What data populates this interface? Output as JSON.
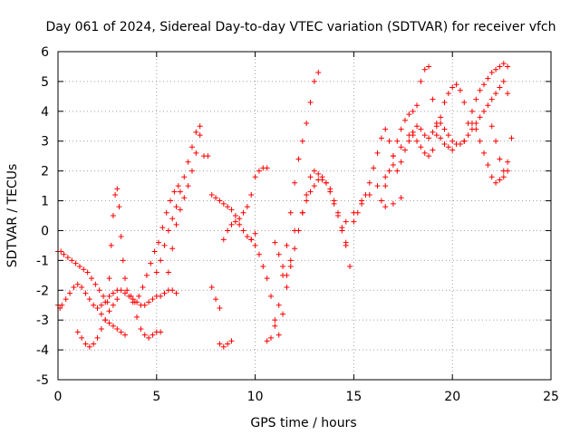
{
  "chart_data": {
    "type": "scatter",
    "title": "Day 061 of 2024, Sidereal Day-to-day VTEC variation (SDTVAR) for receiver vfch",
    "xlabel": "GPS time / hours",
    "ylabel": "SDTVAR / TECUs",
    "xlim": [
      0,
      25
    ],
    "ylim": [
      -5,
      6
    ],
    "xticks": [
      0,
      5,
      10,
      15,
      20,
      25
    ],
    "yticks": [
      -5,
      -4,
      -3,
      -2,
      -1,
      0,
      1,
      2,
      3,
      4,
      5,
      6
    ],
    "grid": true,
    "marker": "+",
    "color": "#ff0000",
    "series": [
      {
        "x": [
          0.0,
          0.15,
          0.3,
          0.5,
          0.7,
          0.9,
          1.1,
          1.3,
          1.5,
          1.7,
          1.9,
          2.1,
          2.3,
          2.5,
          2.6,
          2.7,
          2.8,
          2.9,
          3.0,
          3.1,
          3.2,
          3.3,
          3.4,
          3.5,
          3.7,
          3.9,
          4.1,
          4.3,
          4.5,
          4.7,
          4.9,
          5.1,
          5.3,
          5.5,
          5.7,
          5.9,
          6.1
        ],
        "y": [
          -0.7,
          -0.7,
          -0.8,
          -0.9,
          -1.0,
          -1.1,
          -1.2,
          -1.3,
          -1.4,
          -1.6,
          -1.8,
          -2.0,
          -2.2,
          -2.4,
          -1.6,
          -0.5,
          0.5,
          1.2,
          1.4,
          0.8,
          -0.2,
          -1.0,
          -1.6,
          -2.0,
          -2.2,
          -2.4,
          -2.2,
          -1.9,
          -1.5,
          -1.1,
          -0.7,
          -0.4,
          0.1,
          0.6,
          1.0,
          1.3,
          1.5
        ]
      },
      {
        "x": [
          0.0,
          0.1,
          0.2,
          0.4,
          0.6,
          0.8,
          1.0,
          1.2,
          1.4,
          1.6,
          1.8,
          2.0,
          2.2,
          2.4,
          2.6,
          2.8,
          3.0,
          3.2,
          3.4,
          3.6,
          3.8,
          4.0,
          4.2,
          4.4,
          4.6,
          4.8,
          5.0,
          5.2,
          5.4,
          5.6,
          5.8,
          6.0
        ],
        "y": [
          -2.5,
          -2.6,
          -2.5,
          -2.3,
          -2.1,
          -1.9,
          -1.8,
          -1.9,
          -2.1,
          -2.3,
          -2.5,
          -2.6,
          -2.5,
          -2.4,
          -2.2,
          -2.1,
          -2.0,
          -2.0,
          -2.1,
          -2.2,
          -2.3,
          -2.4,
          -2.5,
          -2.5,
          -2.4,
          -2.3,
          -2.2,
          -2.2,
          -2.1,
          -2.0,
          -2.0,
          -2.1
        ]
      },
      {
        "x": [
          1.0,
          1.2,
          1.4,
          1.6,
          1.8,
          2.0,
          2.2,
          2.4,
          2.6,
          2.8,
          3.0
        ],
        "y": [
          -3.4,
          -3.6,
          -3.8,
          -3.9,
          -3.8,
          -3.6,
          -3.3,
          -3.0,
          -2.7,
          -2.5,
          -2.3
        ]
      },
      {
        "x": [
          3.8,
          4.0,
          4.2,
          4.4,
          4.6,
          4.8,
          5.0,
          5.2
        ],
        "y": [
          -2.4,
          -2.9,
          -3.3,
          -3.5,
          -3.6,
          -3.5,
          -3.4,
          -3.4
        ]
      },
      {
        "x": [
          2.2,
          2.4,
          2.6,
          2.8,
          3.0,
          3.2,
          3.4
        ],
        "y": [
          -2.8,
          -3.0,
          -3.1,
          -3.2,
          -3.3,
          -3.4,
          -3.5
        ]
      },
      {
        "x": [
          5.0,
          5.2,
          5.4,
          5.6,
          5.8,
          6.0,
          6.2,
          6.4,
          6.6,
          6.8,
          7.0,
          7.2
        ],
        "y": [
          -1.4,
          -1.0,
          -0.5,
          0.0,
          0.4,
          0.8,
          1.3,
          1.8,
          2.3,
          2.8,
          3.3,
          3.5
        ]
      },
      {
        "x": [
          5.6,
          5.8,
          6.0,
          6.2,
          6.4,
          6.6,
          6.8,
          7.0,
          7.2
        ],
        "y": [
          -1.4,
          -0.6,
          0.2,
          0.7,
          1.1,
          1.5,
          2.0,
          2.6,
          3.2
        ]
      },
      {
        "x": [
          7.4,
          7.6,
          7.8,
          8.0,
          8.2,
          8.4,
          8.6,
          8.8,
          9.0,
          9.2,
          9.4,
          9.6,
          9.8,
          10.0
        ],
        "y": [
          2.5,
          2.5,
          1.2,
          1.1,
          1.0,
          0.9,
          0.8,
          0.7,
          0.5,
          0.2,
          0.0,
          -0.2,
          -0.3,
          -0.1
        ]
      },
      {
        "x": [
          7.8,
          8.0,
          8.2
        ],
        "y": [
          -1.9,
          -2.3,
          -2.6
        ]
      },
      {
        "x": [
          8.4,
          8.6,
          8.8,
          9.0,
          9.2,
          9.4,
          9.6,
          9.8,
          10.0,
          10.2,
          10.4,
          10.6
        ],
        "y": [
          -0.3,
          0.0,
          0.2,
          0.3,
          0.4,
          0.6,
          0.8,
          1.2,
          1.8,
          2.0,
          2.1,
          2.1
        ]
      },
      {
        "x": [
          8.2,
          8.4,
          8.6,
          8.8
        ],
        "y": [
          -3.8,
          -3.9,
          -3.8,
          -3.7
        ]
      },
      {
        "x": [
          9.8,
          10.0,
          10.2,
          10.4,
          10.6,
          10.8,
          11.0,
          11.2,
          11.4,
          11.6,
          11.8,
          12.0
        ],
        "y": [
          -0.3,
          -0.5,
          -0.8,
          -1.2,
          -1.6,
          -2.2,
          -3.0,
          -3.5,
          -2.8,
          -1.9,
          -1.0,
          0.0
        ]
      },
      {
        "x": [
          10.6,
          10.8,
          11.0,
          11.2,
          11.4,
          11.6,
          11.8,
          12.0,
          12.2,
          12.4,
          12.6,
          12.8,
          13.0,
          13.2
        ],
        "y": [
          -3.7,
          -3.6,
          -3.2,
          -2.5,
          -1.5,
          -0.5,
          0.6,
          1.6,
          2.4,
          3.0,
          3.6,
          4.3,
          5.0,
          5.3
        ]
      },
      {
        "x": [
          11.0,
          11.2,
          11.4,
          11.6,
          11.8,
          12.0,
          12.2,
          12.4,
          12.6,
          12.8,
          13.0,
          13.2,
          13.4,
          13.6,
          13.8,
          14.0,
          14.2,
          14.4,
          14.6,
          14.8
        ],
        "y": [
          -0.4,
          -0.8,
          -1.2,
          -1.5,
          -1.2,
          -0.6,
          0.0,
          0.6,
          1.0,
          1.3,
          1.5,
          1.7,
          1.8,
          1.6,
          1.3,
          0.9,
          0.5,
          0.0,
          -0.5,
          -1.2
        ]
      },
      {
        "x": [
          12.4,
          12.6,
          12.8,
          13.0,
          13.2,
          13.4,
          13.6,
          13.8,
          14.0,
          14.2,
          14.4,
          14.6
        ],
        "y": [
          0.6,
          1.2,
          1.8,
          2.0,
          1.9,
          1.7,
          1.6,
          1.4,
          1.0,
          0.6,
          0.1,
          -0.4
        ]
      },
      {
        "x": [
          15.0,
          15.2,
          15.4,
          15.6,
          15.8,
          16.0,
          16.2,
          16.4,
          16.6,
          16.8,
          17.0,
          17.2,
          17.4,
          17.6,
          17.8,
          18.0,
          18.2,
          18.4,
          18.6,
          18.8,
          19.0,
          19.2,
          19.4,
          19.6,
          19.8,
          20.0,
          20.2,
          20.4,
          20.6,
          20.8,
          21.0,
          21.2,
          21.4,
          21.6,
          21.8,
          22.0,
          22.2,
          22.4,
          22.6,
          22.8
        ],
        "y": [
          0.3,
          0.6,
          0.9,
          1.2,
          1.6,
          2.1,
          2.6,
          3.1,
          3.4,
          3.0,
          2.5,
          2.0,
          2.3,
          2.7,
          3.0,
          3.3,
          3.5,
          3.4,
          3.2,
          3.1,
          3.3,
          3.5,
          3.6,
          3.4,
          3.2,
          3.0,
          2.9,
          2.9,
          3.0,
          3.2,
          3.4,
          3.6,
          3.8,
          4.0,
          4.2,
          4.4,
          4.6,
          4.8,
          5.0,
          4.6
        ]
      },
      {
        "x": [
          16.4,
          16.6,
          16.8,
          17.0,
          17.2,
          17.4,
          17.6,
          17.8,
          18.0,
          18.2,
          18.4,
          18.6,
          18.8,
          19.0,
          19.2,
          19.4,
          19.6,
          19.8,
          20.0
        ],
        "y": [
          1.0,
          1.5,
          2.0,
          2.5,
          3.0,
          3.4,
          3.7,
          3.9,
          4.0,
          4.2,
          5.0,
          5.4,
          5.5,
          4.4,
          3.6,
          3.1,
          2.9,
          2.8,
          2.7
        ]
      },
      {
        "x": [
          18.0,
          18.2,
          18.4,
          18.6,
          18.8,
          19.0,
          19.2,
          19.4,
          19.6,
          19.8,
          20.0,
          20.2,
          20.4,
          20.6
        ],
        "y": [
          3.2,
          3.0,
          2.8,
          2.6,
          2.5,
          2.7,
          3.2,
          3.8,
          4.3,
          4.6,
          4.8,
          4.9,
          4.7,
          4.3
        ]
      },
      {
        "x": [
          20.6,
          20.8,
          21.0,
          21.2,
          21.4,
          21.6,
          21.8,
          22.0,
          22.2,
          22.4,
          22.6,
          22.8
        ],
        "y": [
          3.0,
          3.6,
          4.0,
          4.4,
          4.7,
          4.9,
          5.1,
          5.3,
          5.4,
          5.5,
          5.6,
          5.5
        ]
      },
      {
        "x": [
          21.0,
          21.2,
          21.4,
          21.6,
          21.8,
          22.0,
          22.2,
          22.4,
          22.6,
          22.8
        ],
        "y": [
          3.6,
          3.4,
          3.0,
          2.6,
          2.2,
          1.8,
          1.6,
          1.7,
          1.8,
          2.0
        ]
      },
      {
        "x": [
          22.0,
          22.2,
          22.4,
          22.6,
          22.8,
          23.0
        ],
        "y": [
          3.5,
          3.0,
          2.4,
          2.0,
          2.3,
          3.1
        ]
      },
      {
        "x": [
          14.6,
          15.0,
          15.4,
          15.8,
          16.2,
          16.6,
          17.0,
          17.4,
          17.8
        ],
        "y": [
          0.3,
          0.6,
          1.0,
          1.2,
          1.5,
          1.8,
          2.2,
          2.8,
          3.2
        ]
      },
      {
        "x": [
          16.6,
          17.0,
          17.4
        ],
        "y": [
          0.8,
          0.9,
          1.1
        ]
      }
    ]
  }
}
